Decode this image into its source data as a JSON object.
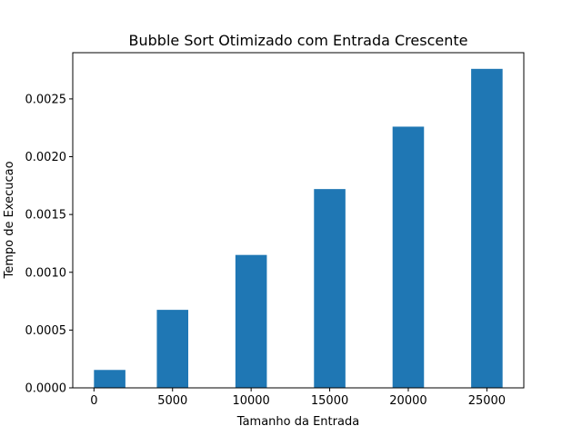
{
  "chart_data": {
    "type": "bar",
    "title": "Bubble Sort Otimizado com Entrada Crescente",
    "xlabel": "Tamanho da Entrada",
    "ylabel": "Tempo de Execucao",
    "x": [
      1000,
      5000,
      10000,
      15000,
      20000,
      25000
    ],
    "values": [
      0.000155,
      0.000675,
      0.00115,
      0.00172,
      0.00226,
      0.00276
    ],
    "bar_width": 2000,
    "xlim": [
      -1350,
      27350
    ],
    "ylim": [
      0,
      0.0029
    ],
    "xticks": [
      0,
      5000,
      10000,
      15000,
      20000,
      25000
    ],
    "xtick_labels": [
      "0",
      "5000",
      "10000",
      "15000",
      "20000",
      "25000"
    ],
    "yticks": [
      0,
      0.0005,
      0.001,
      0.0015,
      0.002,
      0.0025
    ],
    "ytick_labels": [
      "0.0000",
      "0.0005",
      "0.0010",
      "0.0015",
      "0.0020",
      "0.0025"
    ],
    "bar_color": "#1f77b4",
    "grid": false,
    "legend": "none"
  }
}
